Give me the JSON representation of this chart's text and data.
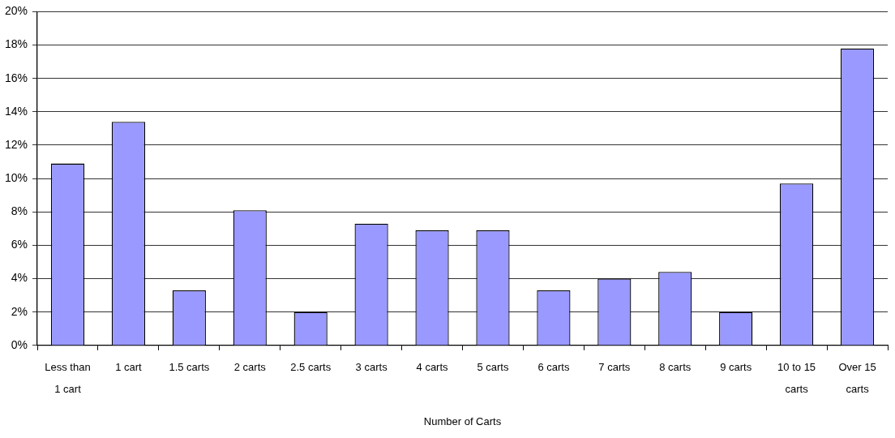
{
  "chart_data": {
    "type": "bar",
    "xlabel": "Number of Carts",
    "categories": [
      "Less than 1 cart",
      "1 cart",
      "1.5 carts",
      "2 carts",
      "2.5 carts",
      "3 carts",
      "4 carts",
      "5 carts",
      "6 carts",
      "7 carts",
      "8 carts",
      "9 carts",
      "10 to 15 carts",
      "Over 15 carts"
    ],
    "values": [
      10.9,
      13.4,
      3.3,
      8.1,
      2.0,
      7.3,
      6.9,
      6.9,
      3.3,
      4.0,
      4.4,
      2.0,
      9.7,
      17.8
    ],
    "color": "#9999ff",
    "ylim": [
      0,
      20
    ],
    "yticks": [
      {
        "value": 0,
        "label": "0%"
      },
      {
        "value": 2,
        "label": "2%"
      },
      {
        "value": 4,
        "label": "4%"
      },
      {
        "value": 6,
        "label": "6%"
      },
      {
        "value": 8,
        "label": "8%"
      },
      {
        "value": 10,
        "label": "10%"
      },
      {
        "value": 12,
        "label": "12%"
      },
      {
        "value": 14,
        "label": "14%"
      },
      {
        "value": 16,
        "label": "16%"
      },
      {
        "value": 18,
        "label": "18%"
      },
      {
        "value": 20,
        "label": "20%"
      }
    ],
    "grid": "y",
    "legend": false
  }
}
